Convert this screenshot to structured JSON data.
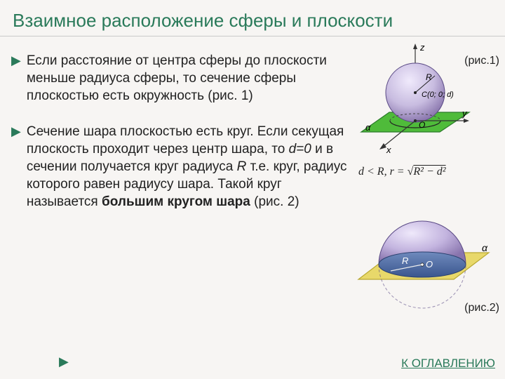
{
  "title": "Взаимное расположение сферы и плоскости",
  "para1": "Если расстояние от центра сферы до плоскости меньше радиуса сферы, то сечение сферы плоскостью есть окружность (рис. 1)",
  "para2_pre": "Сечение шара плоскостью есть круг. Если секущая плоскость проходит через центр шара, то ",
  "para2_d": "d=0",
  "para2_mid": " и в сечении получается круг радиуса ",
  "para2_R": "R",
  "para2_mid2": " т.е. круг, радиус которого равен радиусу шара. Такой круг называется ",
  "para2_bold": "большим кругом шара",
  "para2_end": " (рис. 2)",
  "fig1_label": "(рис.1)",
  "fig2_label": "(рис.2)",
  "formula_html": "d &lt; R, r = √<span class='sq-root'>R² − d²</span>",
  "toc_link": "К ОГЛАВЛЕНИЮ",
  "colors": {
    "accent": "#2a7a5a",
    "background": "#f7f5f3",
    "text": "#222222"
  },
  "fig1": {
    "plane_fill": "#4fbb3a",
    "plane_edge": "#2a7a2a",
    "sphere_top": "#e0d8f2",
    "sphere_bot": "#a99ac9",
    "axis_color": "#333333",
    "labels": {
      "z": "z",
      "x": "x",
      "y": "y",
      "R": "R",
      "C": "C(0; 0; d)",
      "O": "O",
      "alpha": "α"
    }
  },
  "fig2": {
    "plane_fill": "#e8d86a",
    "plane_edge": "#b8a830",
    "sphere_top": "#dcd4ee",
    "sphere_bot": "#9a88c0",
    "section_fill": "#4a6aa8",
    "labels": {
      "R": "R",
      "O": "O",
      "alpha": "α"
    }
  }
}
